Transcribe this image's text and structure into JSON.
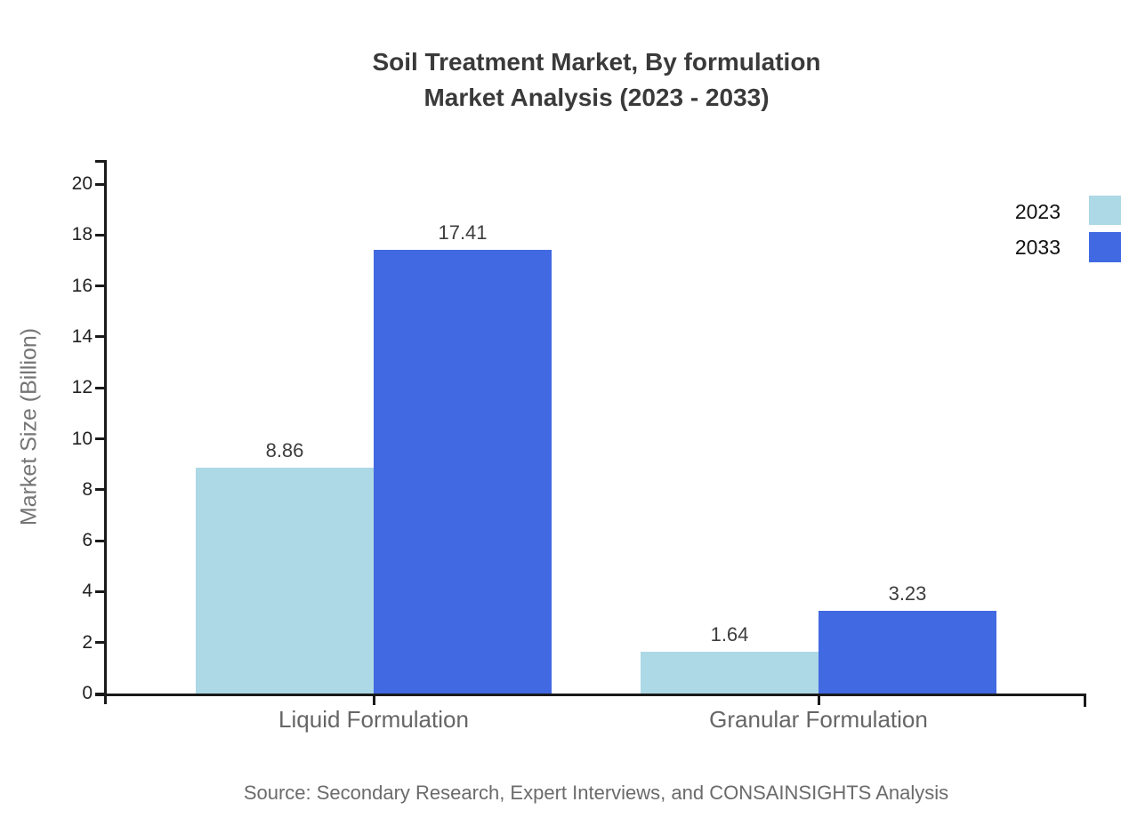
{
  "page": {
    "background": "#ffffff"
  },
  "chart_data": {
    "type": "bar",
    "title": "Soil Treatment Market, By formulation Market Analysis (2023 - 2033)",
    "title_line1": "Soil Treatment Market, By formulation",
    "title_line2": "Market Analysis (2023 - 2033)",
    "categories": [
      "Liquid Formulation",
      "Granular Formulation"
    ],
    "series": [
      {
        "name": "2023",
        "color": "#add8e6",
        "values": [
          8.86,
          1.64
        ]
      },
      {
        "name": "2033",
        "color": "#4169e1",
        "values": [
          17.41,
          3.23
        ]
      }
    ],
    "xlabel": "",
    "ylabel": "Market Size (Billion)",
    "ylim": [
      0,
      20
    ],
    "ytick_step": 2,
    "yticks": [
      0,
      2,
      4,
      6,
      8,
      10,
      12,
      14,
      16,
      18,
      20
    ],
    "grid": false,
    "legend_position": "top-right",
    "value_labels": [
      "8.86",
      "17.41",
      "1.64",
      "3.23"
    ],
    "value_label_decimals": 2
  },
  "source_note": "Source: Secondary Research, Expert Interviews, and CONSAINSIGHTS Analysis",
  "colors": {
    "title": "#3a3a3a",
    "axis": "#1a1a1a",
    "tick_label": "#222222",
    "value_label": "#3d3d3d",
    "category_label": "#666666",
    "axis_title": "#757575",
    "source": "#6b6b6b",
    "legend_text": "#111111"
  }
}
